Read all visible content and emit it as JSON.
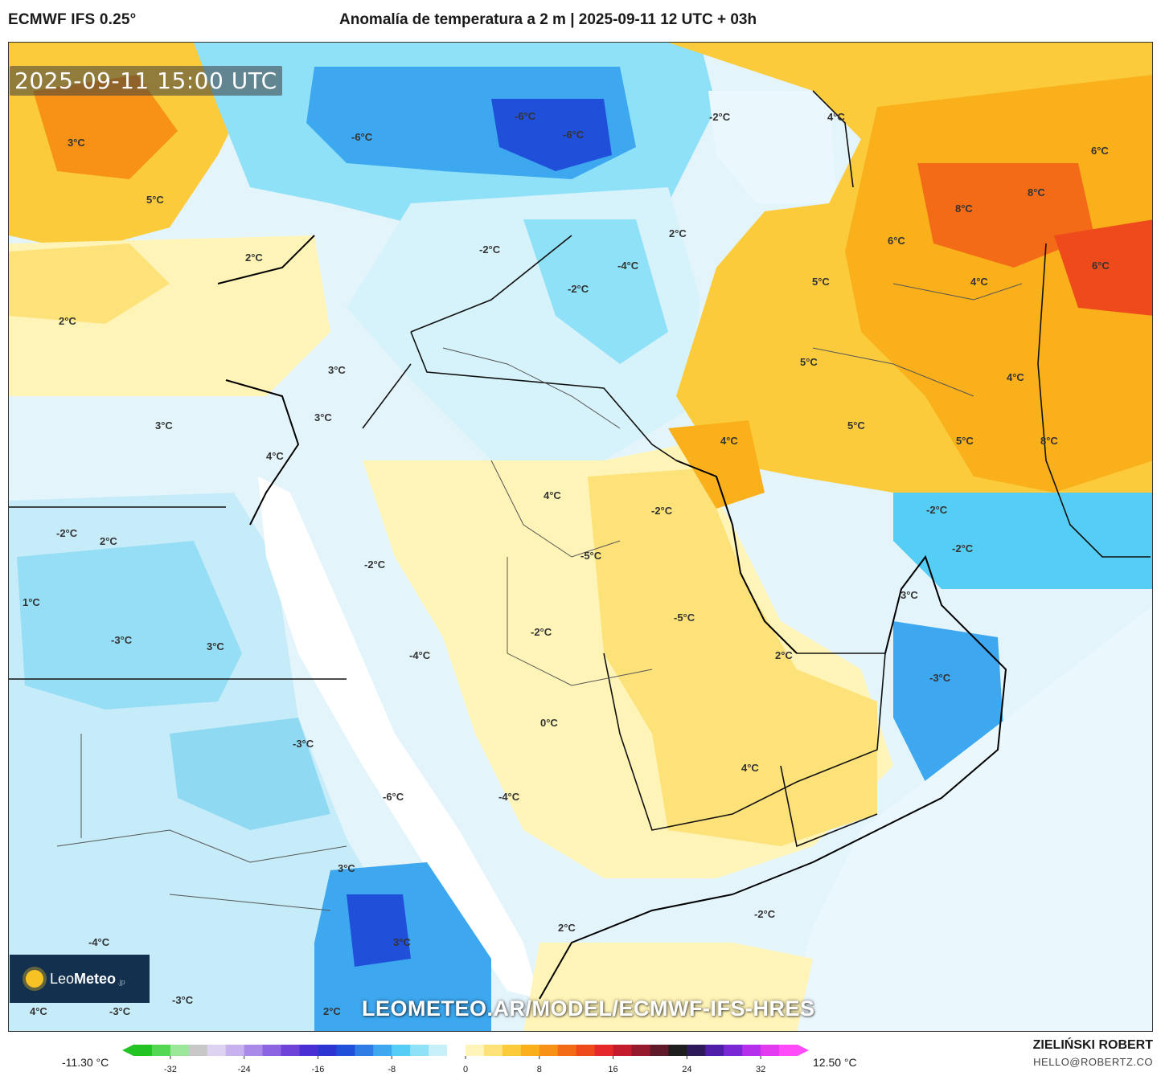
{
  "header": {
    "model": "ECMWF IFS 0.25°",
    "title": "Anomalía de temperatura a 2 m | 2025-09-11 12 UTC + 03h"
  },
  "map": {
    "valid_time": "2025-09-11 15:00 UTC",
    "watermark": "LEOMETEO.AR/MODEL/ECMWF-IFS-HRES",
    "labels": [
      "3°C",
      "5°C",
      "2°C",
      "2°C",
      "-6°C",
      "-6°C",
      "-6°C",
      "-2°C",
      "4°C",
      "6°C",
      "8°C",
      "8°C",
      "6°C",
      "2°C",
      "-2°C",
      "-4°C",
      "-2°C",
      "5°C",
      "4°C",
      "6°C",
      "3°C",
      "3°C",
      "3°C",
      "4°C",
      "5°C",
      "4°C",
      "5°C",
      "5°C",
      "8°C",
      "4°C",
      "-2°C",
      "4°C",
      "-2°C",
      "-2°C",
      "-2°C",
      "-2°C",
      "2°C",
      "1°C",
      "-3°C",
      "-5°C",
      "-2°C",
      "-4°C",
      "3°C",
      "3°C",
      "-5°C",
      "2°C",
      "-3°C",
      "0°C",
      "-3°C",
      "4°C",
      "-6°C",
      "-4°C",
      "3°C",
      "2°C",
      "-2°C",
      "3°C",
      "-4°C",
      "-3°C",
      "-3°C",
      "4°C",
      "2°C"
    ]
  },
  "logo": {
    "brand_light": "Leo",
    "brand_bold": "Meteo",
    "suffix": ".jp"
  },
  "colorbar": {
    "min_label": "-11.30 °C",
    "max_label": "12.50 °C",
    "ticks": [
      "-32",
      "-24",
      "-16",
      "-8",
      "0",
      "8",
      "16",
      "24",
      "32"
    ],
    "tick_values": [
      -32,
      -24,
      -16,
      -8,
      0,
      8,
      16,
      24,
      32
    ],
    "colors": [
      "#22c322",
      "#54d854",
      "#9be89b",
      "#c8c8c8",
      "#ddd3f0",
      "#c8b1ef",
      "#a98ae9",
      "#8c63e0",
      "#6f42d8",
      "#4a30d4",
      "#2c34d2",
      "#2050da",
      "#2f7ce6",
      "#3da8ef",
      "#55cdf5",
      "#8fe1f8",
      "#c8f0fb",
      "#ffffff",
      "#fff4b8",
      "#fde27a",
      "#fbcb3c",
      "#f9b01a",
      "#f79216",
      "#f36a17",
      "#ef4a1c",
      "#e52828",
      "#c41b2d",
      "#961a2e",
      "#5e1a28",
      "#1e1e1e",
      "#2e1a5a",
      "#4e1ea8",
      "#7a28d6",
      "#b530ea",
      "#e23bf0",
      "#ff4cf8"
    ]
  },
  "credits": {
    "author": "ZIELIŃSKI ROBERT",
    "email": "HELLO@ROBERTZ.CO"
  }
}
